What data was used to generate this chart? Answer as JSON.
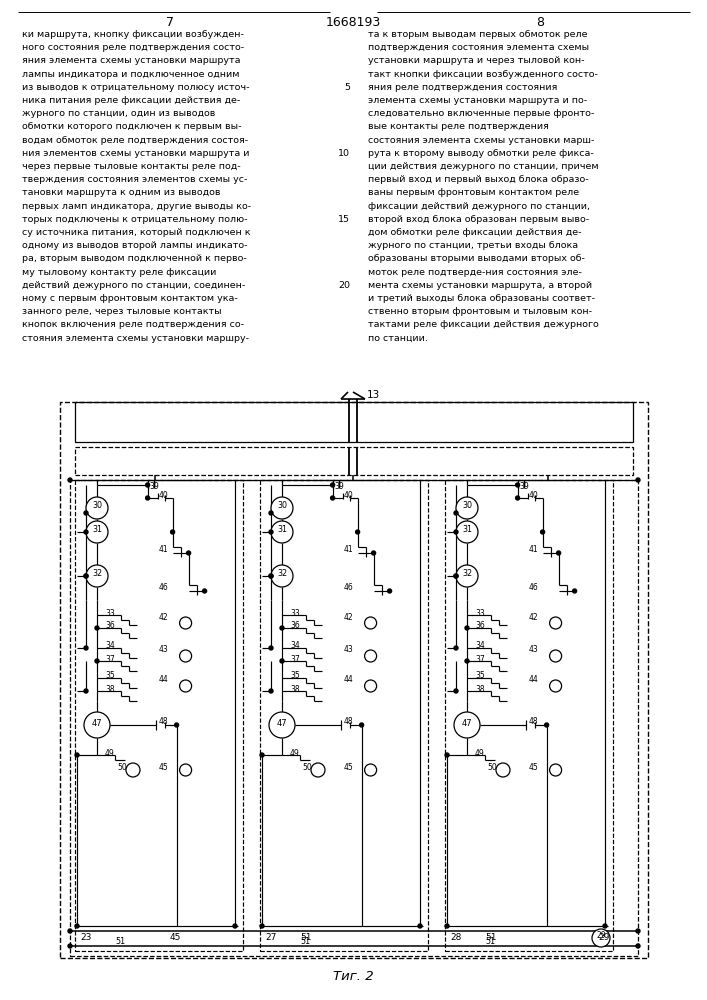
{
  "page_number_left": "7",
  "patent_number": "1668193",
  "page_number_right": "8",
  "left_text_lines": [
    "ки маршрута, кнопку фиксации возбужден-",
    "ного состояния реле подтверждения состо-",
    "яния элемента схемы установки маршрута",
    "лампы индикатора и подключенное одним",
    "из выводов к отрицательному полюсу источ-",
    "ника питания реле фиксации действия де-",
    "журного по станции, один из выводов",
    "обмотки которого подключен к первым вы-",
    "водам обмоток реле подтверждения состоя-",
    "ния элементов схемы установки маршрута и",
    "через первые тыловые контакты реле под-",
    "тверждения состояния элементов схемы ус-",
    "тановки маршрута к одним из выводов",
    "первых ламп индикатора, другие выводы ко-",
    "торых подключены к отрицательному полю-",
    "су источника питания, который подключен к",
    "одному из выводов второй лампы индикато-",
    "ра, вторым выводом подключенной к перво-",
    "му тыловому контакту реле фиксации",
    "действий дежурного по станции, соединен-",
    "ному с первым фронтовым контактом ука-",
    "занного реле, через тыловые контакты",
    "кнопок включения реле подтверждения со-",
    "стояния элемента схемы установки маршру-"
  ],
  "right_text_lines": [
    "та к вторым выводам первых обмоток реле",
    "подтверждения состояния элемента схемы",
    "установки маршрута и через тыловой кон-",
    "такт кнопки фиксации возбужденного состо-",
    "яния реле подтверждения состояния",
    "элемента схемы установки маршрута и по-",
    "следовательно включенные первые фронто-",
    "вые контакты реле подтверждения",
    "состояния элемента схемы установки марш-",
    "рута к второму выводу обмотки реле фикса-",
    "ции действия дежурного по станции, причем",
    "первый вход и первый выход блока образо-",
    "ваны первым фронтовым контактом реле",
    "фиксации действий дежурного по станции,",
    "второй вход блока образован первым выво-",
    "дом обмотки реле фиксации действия де-",
    "журного по станции, третьи входы блока",
    "образованы вторыми выводами вторых об-",
    "моток реле подтверде­ния состояния эле-",
    "мента схемы установки маршрута, а второй",
    "и третий выходы блока образованы соответ-",
    "ственно вторым фронтовым и тыловым кон-",
    "тактами реле фиксации действия дежурного",
    "по станции."
  ],
  "line_number_rows": [
    4,
    9,
    14,
    19
  ],
  "line_number_vals": [
    "5",
    "10",
    "15",
    "20"
  ],
  "figure_caption": "Τиг. 2",
  "bg_color": "#ffffff",
  "fg_color": "#000000"
}
